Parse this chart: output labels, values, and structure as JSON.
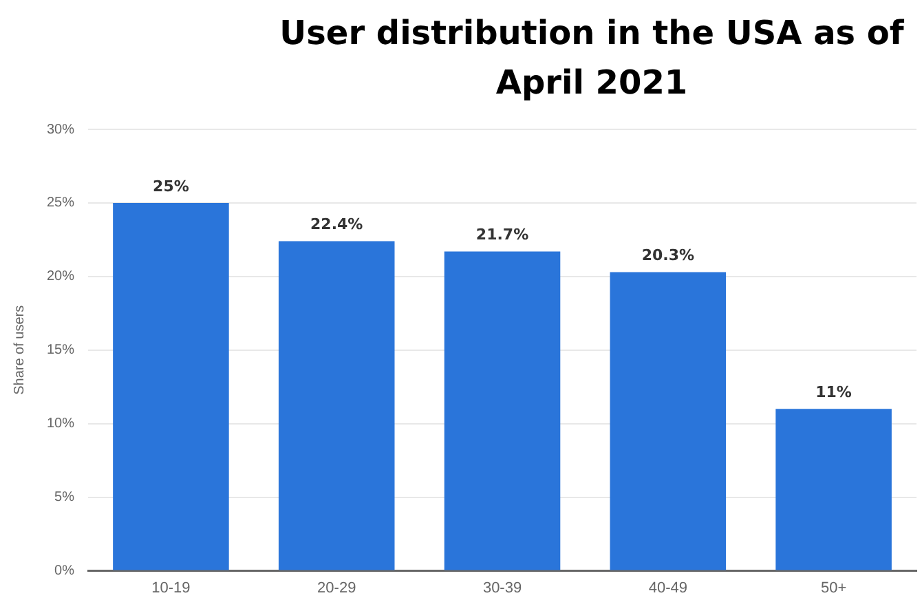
{
  "chart_data": {
    "type": "bar",
    "title": "User distribution in the USA as of April 2021",
    "ylabel": "Share of users",
    "categories": [
      "10-19",
      "20-29",
      "30-39",
      "40-49",
      "50+"
    ],
    "values": [
      25,
      22.4,
      21.7,
      20.3,
      11
    ],
    "value_labels": [
      "25%",
      "22.4%",
      "21.7%",
      "20.3%",
      "11%"
    ],
    "color": "#2a75da",
    "ylim": [
      0,
      30
    ],
    "yticks": [
      {
        "value": 0,
        "label": "0%"
      },
      {
        "value": 5,
        "label": "5%"
      },
      {
        "value": 10,
        "label": "10%"
      },
      {
        "value": 15,
        "label": "15%"
      },
      {
        "value": 20,
        "label": "20%"
      },
      {
        "value": 25,
        "label": "25%"
      },
      {
        "value": 30,
        "label": "30%"
      }
    ],
    "grid": "y",
    "legend": false
  }
}
